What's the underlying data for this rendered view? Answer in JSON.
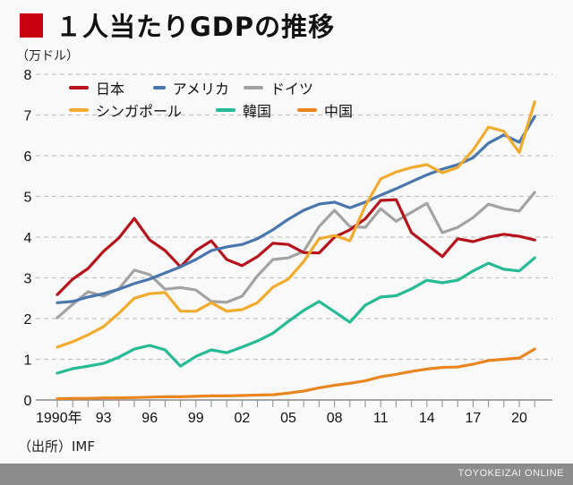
{
  "header": {
    "title": "１人当たりGDPの推移",
    "unit": "（万ドル）"
  },
  "footer": {
    "source": "（出所）IMF",
    "brand": "TOYOKEIZAI ONLINE"
  },
  "colors": {
    "title_accent": "#c8000f",
    "banner": "#8c8c8c"
  },
  "chart_data": {
    "type": "line",
    "title": "１人当たりGDPの推移",
    "xlabel": "",
    "ylabel": "（万ドル）",
    "x": [
      1990,
      1991,
      1992,
      1993,
      1994,
      1995,
      1996,
      1997,
      1998,
      1999,
      2000,
      2001,
      2002,
      2003,
      2004,
      2005,
      2006,
      2007,
      2008,
      2009,
      2010,
      2011,
      2012,
      2013,
      2014,
      2015,
      2016,
      2017,
      2018,
      2019,
      2020,
      2021
    ],
    "xlim": [
      1990,
      2021
    ],
    "ylim": [
      0,
      8
    ],
    "yticks": [
      0,
      1,
      2,
      3,
      4,
      5,
      6,
      7,
      8
    ],
    "xtick_labels": [
      {
        "year": 1990,
        "label": "1990年"
      },
      {
        "year": 1993,
        "label": "93"
      },
      {
        "year": 1996,
        "label": "96"
      },
      {
        "year": 1999,
        "label": "99"
      },
      {
        "year": 2002,
        "label": "02"
      },
      {
        "year": 2005,
        "label": "05"
      },
      {
        "year": 2008,
        "label": "08"
      },
      {
        "year": 2011,
        "label": "11"
      },
      {
        "year": 2014,
        "label": "14"
      },
      {
        "year": 2017,
        "label": "17"
      },
      {
        "year": 2020,
        "label": "20"
      }
    ],
    "grid": "horizontal-dashed",
    "legend_position": "top-left",
    "series": [
      {
        "name": "日本",
        "color": "#b5141c",
        "values": [
          2.59,
          2.97,
          3.23,
          3.65,
          3.98,
          4.46,
          3.93,
          3.67,
          3.27,
          3.67,
          3.91,
          3.45,
          3.3,
          3.52,
          3.85,
          3.82,
          3.62,
          3.61,
          4.0,
          4.18,
          4.45,
          4.9,
          4.92,
          4.11,
          3.82,
          3.52,
          3.96,
          3.89,
          4.0,
          4.07,
          4.02,
          3.93
        ]
      },
      {
        "name": "アメリカ",
        "color": "#4a76ae",
        "values": [
          2.39,
          2.42,
          2.53,
          2.61,
          2.72,
          2.86,
          2.97,
          3.12,
          3.27,
          3.45,
          3.67,
          3.76,
          3.82,
          3.96,
          4.18,
          4.44,
          4.66,
          4.81,
          4.86,
          4.72,
          4.86,
          5.03,
          5.19,
          5.36,
          5.53,
          5.67,
          5.78,
          5.95,
          6.31,
          6.51,
          6.33,
          6.96
        ]
      },
      {
        "name": "ドイツ",
        "color": "#a3a3a3",
        "values": [
          2.02,
          2.35,
          2.66,
          2.55,
          2.73,
          3.19,
          3.08,
          2.72,
          2.76,
          2.7,
          2.42,
          2.4,
          2.55,
          3.05,
          3.45,
          3.49,
          3.65,
          4.26,
          4.66,
          4.26,
          4.24,
          4.7,
          4.39,
          4.61,
          4.83,
          4.11,
          4.24,
          4.48,
          4.81,
          4.7,
          4.64,
          5.1
        ]
      },
      {
        "name": "シンガポール",
        "color": "#f1ab2f",
        "values": [
          1.3,
          1.43,
          1.6,
          1.8,
          2.13,
          2.5,
          2.61,
          2.64,
          2.18,
          2.18,
          2.39,
          2.18,
          2.22,
          2.39,
          2.77,
          2.97,
          3.4,
          3.96,
          4.04,
          3.91,
          4.77,
          5.43,
          5.6,
          5.71,
          5.78,
          5.58,
          5.71,
          6.14,
          6.7,
          6.6,
          6.08,
          7.32
        ]
      },
      {
        "name": "韓国",
        "color": "#26bb94",
        "values": [
          0.66,
          0.77,
          0.83,
          0.9,
          1.05,
          1.25,
          1.34,
          1.23,
          0.83,
          1.07,
          1.23,
          1.16,
          1.3,
          1.45,
          1.64,
          1.93,
          2.2,
          2.42,
          2.17,
          1.91,
          2.33,
          2.53,
          2.56,
          2.73,
          2.94,
          2.88,
          2.94,
          3.17,
          3.36,
          3.21,
          3.17,
          3.49
        ]
      },
      {
        "name": "中国",
        "color": "#ea8622",
        "values": [
          0.03,
          0.04,
          0.04,
          0.05,
          0.05,
          0.06,
          0.07,
          0.08,
          0.08,
          0.09,
          0.1,
          0.1,
          0.11,
          0.12,
          0.13,
          0.17,
          0.22,
          0.3,
          0.36,
          0.41,
          0.47,
          0.57,
          0.63,
          0.7,
          0.76,
          0.8,
          0.81,
          0.88,
          0.97,
          1.0,
          1.03,
          1.25
        ]
      }
    ]
  }
}
